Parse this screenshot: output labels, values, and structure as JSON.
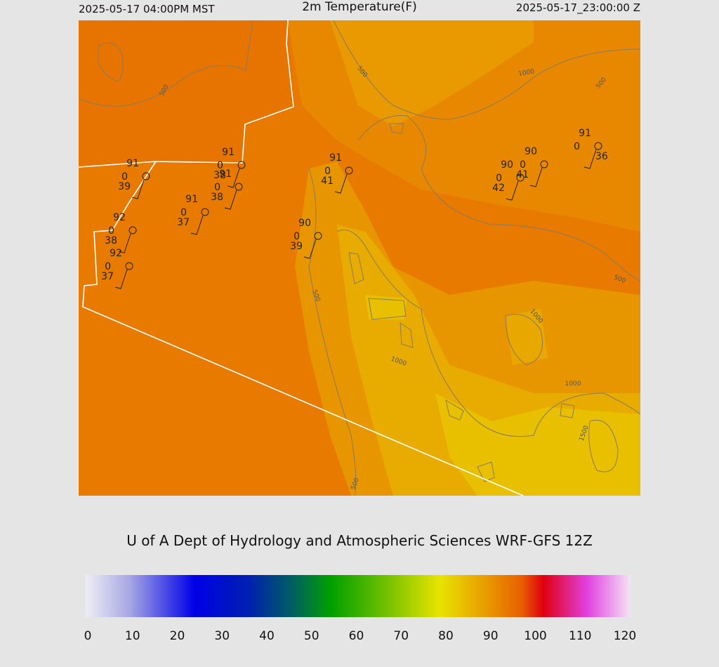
{
  "header": {
    "left": "2025-05-17 04:00PM MST",
    "title": "2m Temperature(F)",
    "right": "2025-05-17_23:00:00 Z"
  },
  "stations": [
    {
      "temperature": 91,
      "pressure": 0,
      "dewpoint": 39
    },
    {
      "temperature": 91,
      "pressure": 0,
      "dewpoint": 38
    },
    {
      "temperature": 91,
      "pressure": 0,
      "dewpoint": 38
    },
    {
      "temperature": 91,
      "pressure": 0,
      "dewpoint": 37
    },
    {
      "temperature": 92,
      "pressure": 0,
      "dewpoint": 38
    },
    {
      "temperature": 92,
      "pressure": 0,
      "dewpoint": 37
    },
    {
      "temperature": 91,
      "pressure": 0,
      "dewpoint": 41
    },
    {
      "temperature": 90,
      "pressure": 0,
      "dewpoint": 39
    },
    {
      "temperature": 90,
      "pressure": 0,
      "dewpoint": 41
    },
    {
      "temperature": 90,
      "pressure": 0,
      "dewpoint": 42
    },
    {
      "temperature": 91,
      "pressure": 0,
      "dewpoint": 36
    }
  ],
  "contour_labels": [
    500,
    500,
    1000,
    500,
    500,
    500,
    1000,
    1000,
    1000,
    1500,
    500
  ],
  "credit": "U of A Dept of Hydrology and Atmospheric Sciences WRF-GFS 12Z",
  "colorbar": {
    "min": 0,
    "max": 120,
    "ticks": [
      0,
      10,
      20,
      30,
      40,
      50,
      60,
      70,
      80,
      90,
      100,
      110,
      120
    ]
  }
}
